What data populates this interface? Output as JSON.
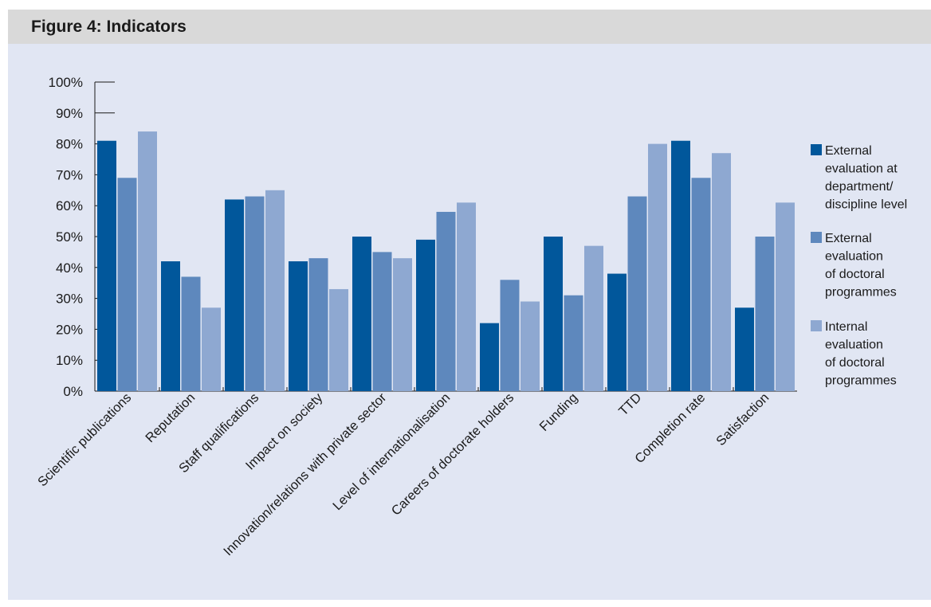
{
  "figure": {
    "title": "Figure 4: Indicators"
  },
  "chart_data": {
    "type": "bar",
    "title": "Figure 4: Indicators",
    "xlabel": "",
    "ylabel": "",
    "ylim": [
      0,
      100
    ],
    "y_ticks": [
      "0%",
      "10%",
      "20%",
      "30%",
      "40%",
      "50%",
      "60%",
      "70%",
      "80%",
      "90%",
      "100%"
    ],
    "categories": [
      "Scientific publications",
      "Reputation",
      "Staff qualifications",
      "Impact on society",
      "Innovation/relations with private sector",
      "Level of internationalisation",
      "Careers of doctorate holders",
      "Funding",
      "TTD",
      "Completion rate",
      "Satisfaction"
    ],
    "series": [
      {
        "name": "External evaluation at department/ discipline level",
        "legend_lines": [
          "External",
          "evaluation at",
          "department/",
          "discipline level"
        ],
        "color": "#01579b",
        "values": [
          81,
          42,
          62,
          42,
          50,
          49,
          22,
          50,
          38,
          81,
          27
        ]
      },
      {
        "name": "External evaluation of doctoral programmes",
        "legend_lines": [
          "External",
          "evaluation",
          "of doctoral",
          "programmes"
        ],
        "color": "#5e88bd",
        "values": [
          69,
          37,
          63,
          43,
          45,
          58,
          36,
          31,
          63,
          69,
          50
        ]
      },
      {
        "name": "Internal evaluation of doctoral programmes",
        "legend_lines": [
          "Internal",
          "evaluation",
          "of doctoral",
          "programmes"
        ],
        "color": "#8ea8d1",
        "values": [
          84,
          27,
          65,
          33,
          43,
          61,
          29,
          47,
          80,
          77,
          61
        ]
      }
    ],
    "legend_position": "right",
    "grid": false
  }
}
